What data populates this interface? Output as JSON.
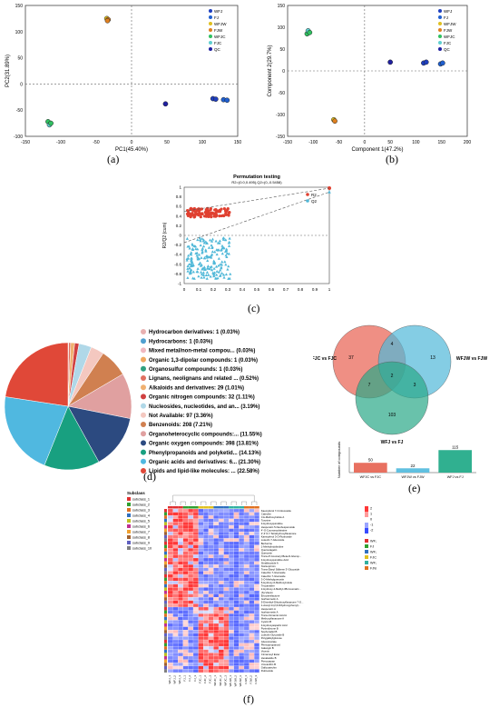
{
  "panels": {
    "a": {
      "label": "(a)",
      "xlabel": "PC1(45.40%)",
      "ylabel": "PC2(31.89%)",
      "xticks": [
        "-150",
        "-100",
        "-50",
        "0",
        "50",
        "100",
        "150"
      ],
      "yticks": [
        "150",
        "100",
        "50",
        "0",
        "-50",
        "-100"
      ],
      "legend": [
        {
          "name": "WFJ",
          "color": "#1f3fbf"
        },
        {
          "name": "FJ",
          "color": "#2060d0"
        },
        {
          "name": "WFJW",
          "color": "#e0c020"
        },
        {
          "name": "FJW",
          "color": "#e08020"
        },
        {
          "name": "WFJC",
          "color": "#30c060"
        },
        {
          "name": "FJC",
          "color": "#60d0d0"
        },
        {
          "name": "QC",
          "color": "#2020a0"
        }
      ],
      "points": [
        {
          "group": "WFJW",
          "x": -35,
          "y": 125
        },
        {
          "group": "FJW",
          "x": -33,
          "y": 123
        },
        {
          "group": "FJW",
          "x": -34,
          "y": 121
        },
        {
          "group": "WFJC",
          "x": -118,
          "y": -72
        },
        {
          "group": "FJC",
          "x": -116,
          "y": -78
        },
        {
          "group": "WFJC",
          "x": -114,
          "y": -75
        },
        {
          "group": "WFJ",
          "x": 115,
          "y": -28
        },
        {
          "group": "WFJ",
          "x": 119,
          "y": -29
        },
        {
          "group": "FJ",
          "x": 130,
          "y": -30
        },
        {
          "group": "FJ",
          "x": 135,
          "y": -31
        },
        {
          "group": "QC",
          "x": 48,
          "y": -38
        }
      ]
    },
    "b": {
      "label": "(b)",
      "xlabel": "Component 1(47.2%)",
      "ylabel": "Component 2(29.7%)",
      "xticks": [
        "-150",
        "-100",
        "-50",
        "0",
        "50",
        "100",
        "150",
        "200"
      ],
      "yticks": [
        "150",
        "100",
        "50",
        "0",
        "-50",
        "-100",
        "-150"
      ],
      "legend": [
        {
          "name": "WFJ",
          "color": "#1f3fbf"
        },
        {
          "name": "FJ",
          "color": "#2060d0"
        },
        {
          "name": "WFJW",
          "color": "#e0c020"
        },
        {
          "name": "FJW",
          "color": "#e08020"
        },
        {
          "name": "WFJC",
          "color": "#30c060"
        },
        {
          "name": "FJC",
          "color": "#60d0d0"
        },
        {
          "name": "QC",
          "color": "#2020a0"
        }
      ],
      "points": [
        {
          "group": "WFJC",
          "x": -112,
          "y": 85
        },
        {
          "group": "FJC",
          "x": -110,
          "y": 92
        },
        {
          "group": "WFJC",
          "x": -107,
          "y": 88
        },
        {
          "group": "WFJW",
          "x": -60,
          "y": -112
        },
        {
          "group": "FJW",
          "x": -58,
          "y": -115
        },
        {
          "group": "QC",
          "x": 50,
          "y": 20
        },
        {
          "group": "WFJ",
          "x": 115,
          "y": 18
        },
        {
          "group": "WFJ",
          "x": 120,
          "y": 20
        },
        {
          "group": "FJ",
          "x": 148,
          "y": 16
        },
        {
          "group": "FJ",
          "x": 152,
          "y": 18
        }
      ]
    },
    "c": {
      "label": "(c)",
      "title": "Permutation testing",
      "subtitle": "R2=(0.0,0.495),Q2=(0,-0.5458)",
      "ylabel": "R2/Q2 (cum)",
      "xticks": [
        "0",
        "0.1",
        "0.2",
        "0.3",
        "0.4",
        "0.5",
        "0.6",
        "0.7",
        "0.8",
        "0.9",
        "1"
      ],
      "yticks": [
        "1",
        "0.8",
        "0.6",
        "0.4",
        "0.2",
        "0",
        "-0.2",
        "-0.4",
        "-0.6",
        "-0.8",
        "-1"
      ],
      "legend": [
        {
          "name": "R2",
          "color": "#e04030"
        },
        {
          "name": "Q2",
          "color": "#50b8d8"
        }
      ]
    },
    "d": {
      "label": "(d)",
      "legend": [
        {
          "label": "Hydrocarbon derivatives: 1 (0.03%)",
          "color": "#e8b0b0"
        },
        {
          "label": "Hydrocarbons: 1 (0.03%)",
          "color": "#50a0d0"
        },
        {
          "label": "Mixed metal/non-metal compou... (0.03%)",
          "color": "#f0b8c0"
        },
        {
          "label": "Organic 1,3-dipolar compounds: 1 (0.03%)",
          "color": "#f0a860"
        },
        {
          "label": "Organosulfur compounds: 1 (0.03%)",
          "color": "#30a080"
        },
        {
          "label": "Lignans, neolignans and related ... (0.52%)",
          "color": "#e07060"
        },
        {
          "label": "Alkaloids and derivatives: 29 (1.01%)",
          "color": "#f0b070"
        },
        {
          "label": "Organic nitrogen compounds: 32 (1.11%)",
          "color": "#d04040"
        },
        {
          "label": "Nucleosides, nucleotides, and an... (3.19%)",
          "color": "#b0d8e8"
        },
        {
          "label": "Not Available: 97 (3.36%)",
          "color": "#f4c8c0"
        },
        {
          "label": "Benzenoids: 208 (7.21%)",
          "color": "#d08050"
        },
        {
          "label": "Organoheterocyclic compounds:... (11.55%)",
          "color": "#e0a0a0"
        },
        {
          "label": "Organic oxygen compounds: 398 (13.81%)",
          "color": "#2c4a80"
        },
        {
          "label": "Phenylpropanoids and polyketid... (14.13%)",
          "color": "#18a080"
        },
        {
          "label": "Organic acids and derivatives: 6... (21.30%)",
          "color": "#50b8e0"
        },
        {
          "label": "Lipids and lipid-like molecules: ... (22.58%)",
          "color": "#e04838"
        }
      ],
      "pie": [
        0.03,
        0.03,
        0.03,
        0.03,
        0.03,
        0.52,
        1.01,
        1.11,
        3.19,
        3.36,
        7.21,
        11.55,
        13.81,
        14.13,
        21.3,
        22.58
      ]
    },
    "e": {
      "label": "(e)",
      "venn": [
        {
          "name": "WFJC vs FJC",
          "color": "#e86050"
        },
        {
          "name": "WFJW vs FJW",
          "color": "#50b8d8"
        },
        {
          "name": "WFJ vs FJ",
          "color": "#2aa888"
        }
      ],
      "counts": {
        "a_only": "37",
        "b_only": "13",
        "c_only": "103",
        "ab": "4",
        "ac": "7",
        "bc": "3",
        "abc": "2"
      },
      "bar": {
        "ylabel": "Number of compounds",
        "categories": [
          "WFJC vs FJC",
          "WFJW vs FJW",
          "WFJ vs FJ"
        ],
        "values": [
          50,
          22,
          115
        ],
        "labels": [
          "50",
          "22",
          "115"
        ],
        "colors": [
          "#e87060",
          "#60c0e0",
          "#30b090"
        ]
      }
    },
    "f": {
      "label": "(f)",
      "legend_title": "Subclass",
      "subclasses": [
        "subclass_1",
        "subclass_2",
        "subclass_3",
        "subclass_4",
        "subclass_5",
        "subclass_6",
        "subclass_7",
        "subclass_8",
        "subclass_9",
        "subclass_10"
      ],
      "subclass_colors": [
        "#e03030",
        "#30a030",
        "#e07020",
        "#3070c0",
        "#c0c020",
        "#c03090",
        "#f0a030",
        "#a06030",
        "#6060c0",
        "#808080"
      ],
      "group_legend": [
        {
          "name": "WFJ",
          "color": "#e03030"
        },
        {
          "name": "FJ",
          "color": "#30a030"
        },
        {
          "name": "WFJC",
          "color": "#3070c0"
        },
        {
          "name": "FJC",
          "color": "#e0c020"
        },
        {
          "name": "WFJW",
          "color": "#30b0a0"
        },
        {
          "name": "FJW",
          "color": "#e07020"
        }
      ],
      "scale": [
        "2",
        "1",
        "0",
        "-1",
        "-2"
      ],
      "row_labels": [
        "Kaempferol 7-O-Glucoside",
        "Catechin",
        "Cis-Methoxyindole A",
        "Tyrosine",
        "3-Hydroxyquinidine",
        "Hesperetin 5-Neohesperoside",
        "4'-O-Coumaroylsinaine",
        "2',3',5,7-Tetrahydroxyflavanone",
        "Kaempferol 3-O-Rutinoside",
        "Luteolin 7-Glucoside",
        "Berberine",
        "1-Methylindolizidine",
        "Quercetagetin",
        "Quercetin",
        "Trans-P-Coumaryl Beta-D-Glucop...",
        "3-Hydroxyquinidine Acid",
        "Sinalbicoside A",
        "Norisoprimin",
        "Trans-Diaryl Stilbene 3'-Glucoside",
        "Catechin 7-Glucoside",
        "Catechin 7-Glucoside",
        "3-O-Methylquercetin",
        "5-Hydroxy-6-Methoxyindole",
        "Tricyanidine",
        "2-Hydroxy-4-Methyl-3B-Coumaric...",
        "(S)-Vitexin",
        "Eriocitrinilactone",
        "Isorhamnetin A",
        "5-Dimethyl-Dihydroxyflavanone 7-O...",
        "1-Acetyl-3-(2,6-Dihydroxyphenyl)...",
        "Hesperetin A",
        "Isorhamnetin A",
        "Trans-Cinnamic Acid A",
        "Methoxyflavanone A",
        "Cyanin B",
        "3-Hydroxyaspartic Acid",
        "Pyrimidinone B",
        "Sophoradiol B",
        "Luteolin Glycoside B",
        "Polygalloylglucose",
        "Glucosinolate",
        "Phenylpropanoid",
        "Galangin B",
        "Vicenin",
        "Cinnamoyl Ester",
        "Hexaketide B",
        "Pterocarpan",
        "Uroxanthin B",
        "Gallocatechin",
        "Rutinoside"
      ],
      "col_labels": [
        "WFJ_1",
        "WFJ_2",
        "WFJ_3",
        "FJ_1",
        "FJ_2",
        "FJ_3",
        "FJC_1",
        "FJC_2",
        "FJC_3",
        "WFJC_1",
        "WFJC_2",
        "WFJC_3",
        "WFJW_1",
        "WFJW_2",
        "WFJW_3",
        "FJW_1",
        "FJW_2",
        "FJW_3"
      ]
    }
  }
}
